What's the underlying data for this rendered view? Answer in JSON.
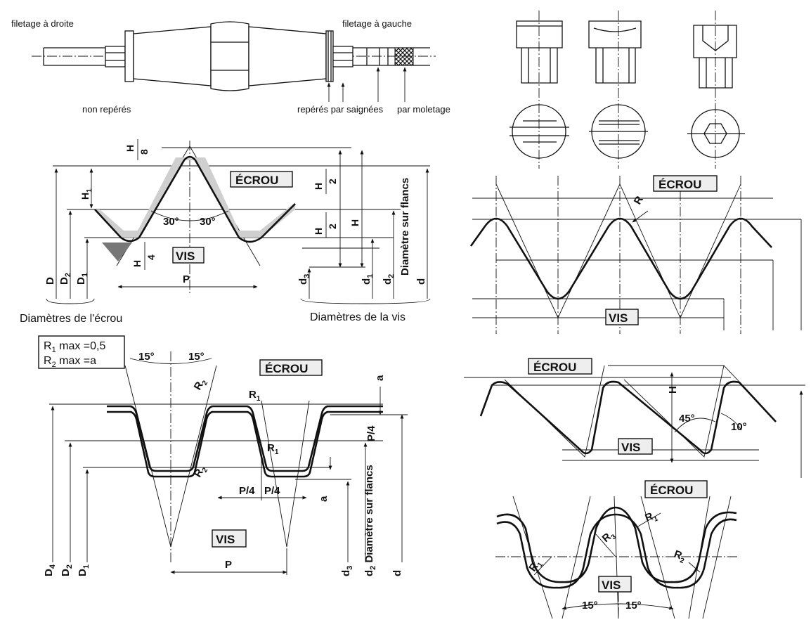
{
  "header": {
    "right_hand": "filetage à droite",
    "left_hand": "filetage à gauche",
    "unmarked": "non repérés",
    "grooves": "repérés par saignées",
    "knurl": "par moletage"
  },
  "iso_profile": {
    "nut": "ÉCROU",
    "screw": "VIS",
    "angle": "30°",
    "h_over": "H",
    "den_8": "8",
    "den_2": "2",
    "den_4": "4",
    "H": "H",
    "H1": "H",
    "H1_sub": "1",
    "P": "P",
    "D": "D",
    "D2": "D",
    "D2_sub": "2",
    "D1": "D",
    "D1_sub": "1",
    "d3": "d",
    "d3_sub": "3",
    "d1": "d",
    "d1_sub": "1",
    "d2": "d",
    "d2_sub": "2",
    "flank_diam": "Diamètre sur flancs",
    "d": "d",
    "nut_diameters": "Diamètres de l'écrou",
    "screw_diameters": "Diamètres de la vis"
  },
  "trap_profile": {
    "r1_max": "R",
    "r1_sub": "1",
    "r1_tail": " max =0,5",
    "r2_max": "R",
    "r2_sub": "2",
    "r2_tail": " max =a",
    "angle": "15°",
    "nut": "ÉCROU",
    "screw": "VIS",
    "R": "R",
    "sub1": "1",
    "sub2": "2",
    "a": "a",
    "p4": "P/4",
    "P": "P",
    "D4": "D",
    "D4_sub": "4",
    "D2": "D",
    "D2_sub": "2",
    "D1": "D",
    "D1_sub": "1",
    "d3": "d",
    "d3_sub": "3",
    "d2_flanks": "d",
    "d2_sub": "2",
    "flank_diam": " Diamètre sur flancs",
    "d": "d"
  },
  "round_profile": {
    "nut": "ÉCROU",
    "screw": "VIS",
    "R": "R"
  },
  "buttress_profile": {
    "nut": "ÉCROU",
    "screw": "VIS",
    "H": "H",
    "angle_45": "45°",
    "angle_10": "10°"
  },
  "knuckle_profile": {
    "nut": "ÉCROU",
    "screw": "VIS",
    "R": "R",
    "sub1": "1",
    "sub2": "2",
    "sub3": "3",
    "angle": "15°"
  }
}
